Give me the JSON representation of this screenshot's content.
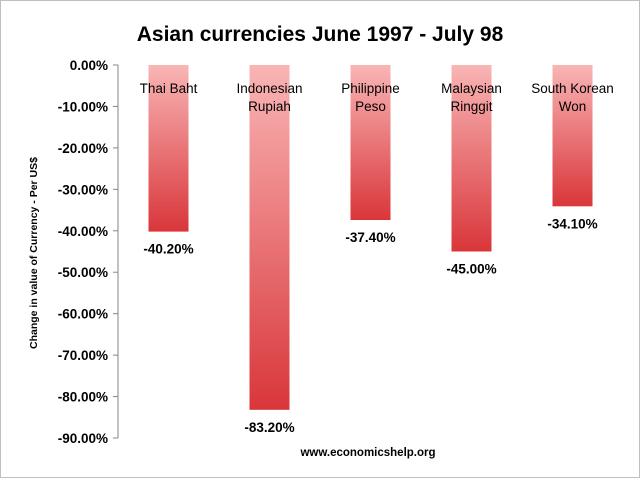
{
  "chart_data": {
    "type": "bar",
    "title": "Asian currencies June 1997 - July 98",
    "ylabel": "Change in value of Currency - Per US$",
    "xlabel": "",
    "categories": [
      [
        "Thai Baht"
      ],
      [
        "Indonesian",
        "Rupiah"
      ],
      [
        "Philippine",
        "Peso"
      ],
      [
        "Malaysian",
        "Ringgit"
      ],
      [
        "South Korean",
        "Won"
      ]
    ],
    "values": [
      -40.2,
      -83.2,
      -37.4,
      -45.0,
      -34.1
    ],
    "data_labels": [
      "-40.20%",
      "-83.20%",
      "-37.40%",
      "-45.00%",
      "-34.10%"
    ],
    "ylim": [
      -90,
      0
    ],
    "y_ticks": [
      "0.00%",
      "-10.00%",
      "-20.00%",
      "-30.00%",
      "-40.00%",
      "-50.00%",
      "-60.00%",
      "-70.00%",
      "-80.00%",
      "-90.00%"
    ],
    "y_tick_values": [
      0,
      -10,
      -20,
      -30,
      -40,
      -50,
      -60,
      -70,
      -80,
      -90
    ],
    "grid": false,
    "legend": "none",
    "bar_color_top": "#f9b5b5",
    "bar_color_bottom": "#d9363a",
    "footer": "www.economicshelp.org"
  }
}
